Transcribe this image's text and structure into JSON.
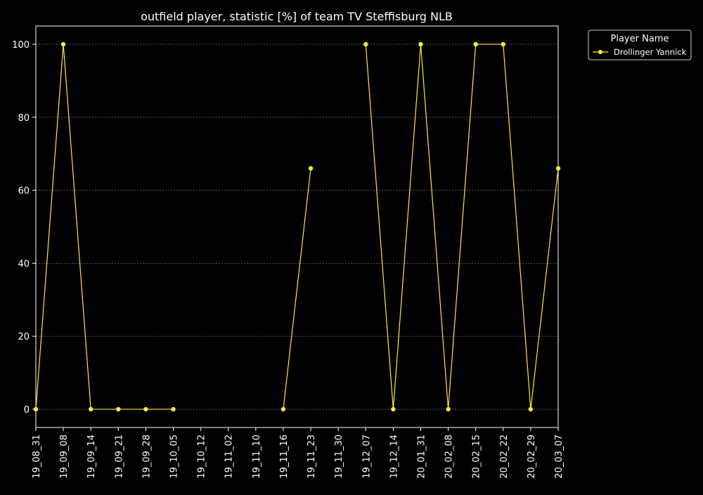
{
  "chart_data": {
    "type": "line",
    "title": "outfield player, statistic [%] of team TV Steffisburg NLB",
    "xlabel": "",
    "ylabel": "",
    "categories": [
      "19_08_31",
      "19_09_08",
      "19_09_14",
      "19_09_21",
      "19_09_28",
      "19_10_05",
      "19_10_12",
      "19_11_02",
      "19_11_10",
      "19_11_16",
      "19_11_23",
      "19_11_30",
      "19_12_07",
      "19_12_14",
      "20_01_31",
      "20_02_08",
      "20_02_15",
      "20_02_22",
      "20_02_29",
      "20_03_07"
    ],
    "ylim": [
      -5,
      105
    ],
    "yticks": [
      0,
      20,
      40,
      60,
      80,
      100
    ],
    "grid": true,
    "series": [
      {
        "name": "Drollinger Yannick",
        "color": "#ffeb3b",
        "values": [
          0,
          100,
          0,
          0,
          0,
          0,
          null,
          null,
          null,
          0,
          66,
          null,
          100,
          0,
          100,
          0,
          100,
          100,
          0,
          66
        ]
      }
    ],
    "legend": {
      "title": "Player Name",
      "position": "top-right, outside plot"
    }
  }
}
